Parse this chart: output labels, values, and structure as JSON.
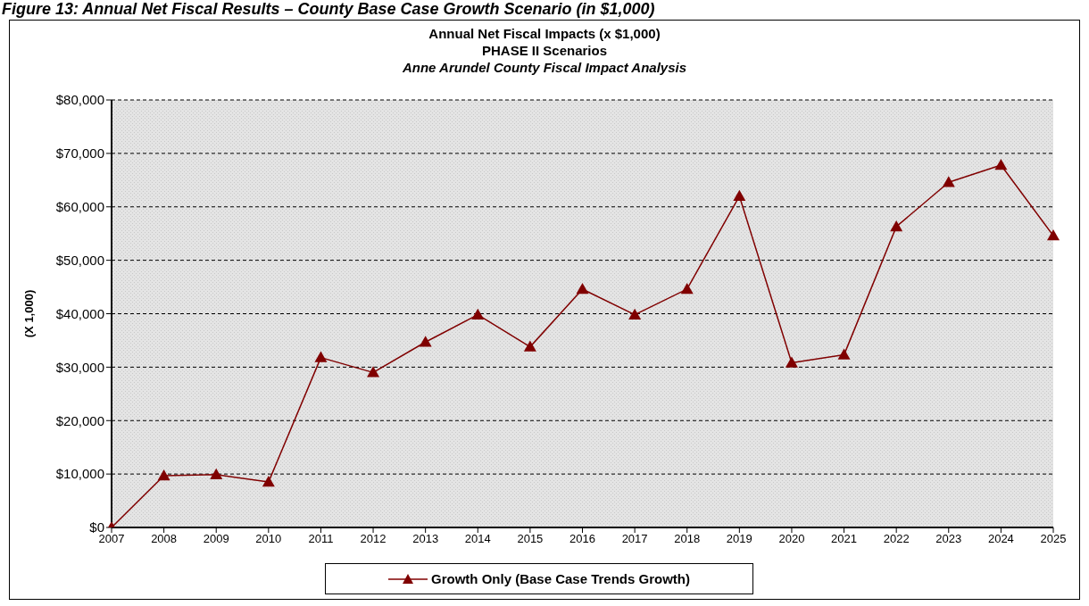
{
  "chart_data": {
    "type": "line",
    "title": "Annual Net Fiscal Impacts (x $1,000)",
    "subtitle": "PHASE II Scenarios",
    "annotations": [
      "Figure 13: Annual Net Fiscal Results – County Base Case Growth Scenario (in $1,000)",
      "Anne Arundel County Fiscal Impact Analysis"
    ],
    "ylabel": "(X 1,000)",
    "categories": [
      "2007",
      "2008",
      "2009",
      "2010",
      "2011",
      "2012",
      "2013",
      "2014",
      "2015",
      "2016",
      "2017",
      "2018",
      "2019",
      "2020",
      "2021",
      "2022",
      "2023",
      "2024",
      "2025"
    ],
    "series": [
      {
        "name": "Growth Only (Base Case Trends Growth)",
        "color": "#800000",
        "values": [
          0,
          9700,
          9900,
          8500,
          31800,
          29000,
          34700,
          39800,
          33800,
          44600,
          39800,
          44600,
          62000,
          30800,
          32300,
          56300,
          64600,
          67800,
          54600
        ]
      }
    ],
    "ylim": [
      0,
      80000
    ],
    "yticks": [
      {
        "value": 0,
        "label": "$0"
      },
      {
        "value": 10000,
        "label": "$10,000"
      },
      {
        "value": 20000,
        "label": "$20,000"
      },
      {
        "value": 30000,
        "label": "$30,000"
      },
      {
        "value": 40000,
        "label": "$40,000"
      },
      {
        "value": 50000,
        "label": "$50,000"
      },
      {
        "value": 60000,
        "label": "$60,000"
      },
      {
        "value": 70000,
        "label": "$70,000"
      },
      {
        "value": 80000,
        "label": "$80,000"
      }
    ],
    "grid": "y",
    "legend": "bottom",
    "marker": "triangle",
    "line_style": "solid"
  }
}
